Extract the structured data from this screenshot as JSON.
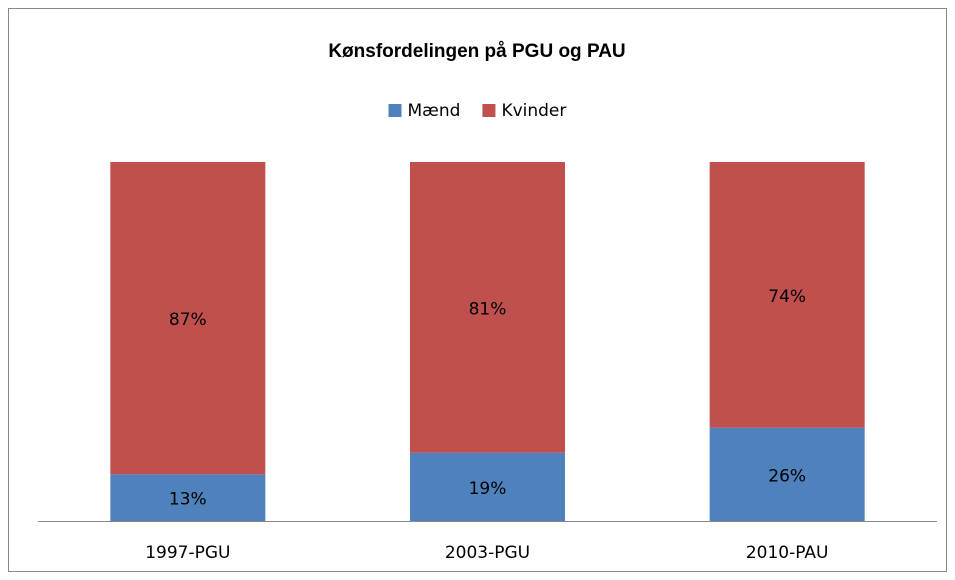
{
  "chart_data": {
    "type": "stacked_bar",
    "title": "Kønsfordelingen på PGU og PAU",
    "categories": [
      "1997-PGU",
      "2003-PGU",
      "2010-PAU"
    ],
    "series": [
      {
        "name": "Mænd",
        "color": "#4f81bd",
        "values": [
          13,
          19,
          26
        ],
        "value_labels": [
          "13%",
          "19%",
          "26%"
        ]
      },
      {
        "name": "Kvinder",
        "color": "#c0504d",
        "values": [
          87,
          81,
          74
        ],
        "value_labels": [
          "87%",
          "81%",
          "74%"
        ]
      }
    ],
    "ylim": [
      0,
      100
    ],
    "legend": "top"
  }
}
